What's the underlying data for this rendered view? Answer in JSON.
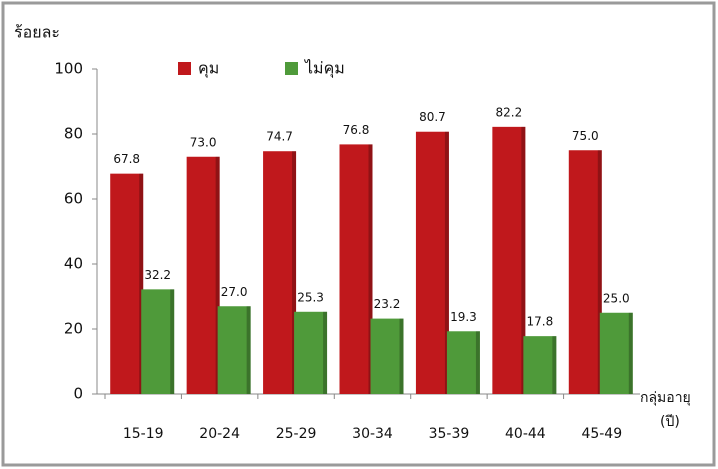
{
  "chart_data": {
    "type": "bar",
    "y_label": "ร้อยละ",
    "x_label": [
      "กลุ่มอายุ",
      "(ปี)"
    ],
    "categories": [
      "15-19",
      "20-24",
      "25-29",
      "30-34",
      "35-39",
      "40-44",
      "45-49"
    ],
    "series": [
      {
        "name": "คุม",
        "color": "#c0181c",
        "values": [
          67.8,
          73.0,
          74.7,
          76.8,
          80.7,
          82.2,
          75.0
        ],
        "value_labels": [
          "67.8",
          "73.0",
          "74.7",
          "76.8",
          "80.7",
          "82.2",
          "75.0"
        ]
      },
      {
        "name": "ไม่คุม",
        "color": "#4f9a3a",
        "values": [
          32.2,
          27.0,
          25.3,
          23.2,
          19.3,
          17.8,
          25.0
        ],
        "value_labels": [
          "32.2",
          "27.0",
          "25.3",
          "23.2",
          "19.3",
          "17.8",
          "25.0"
        ]
      }
    ],
    "ylim": [
      0,
      100
    ],
    "yticks": [
      0,
      20,
      40,
      60,
      80,
      100
    ]
  }
}
